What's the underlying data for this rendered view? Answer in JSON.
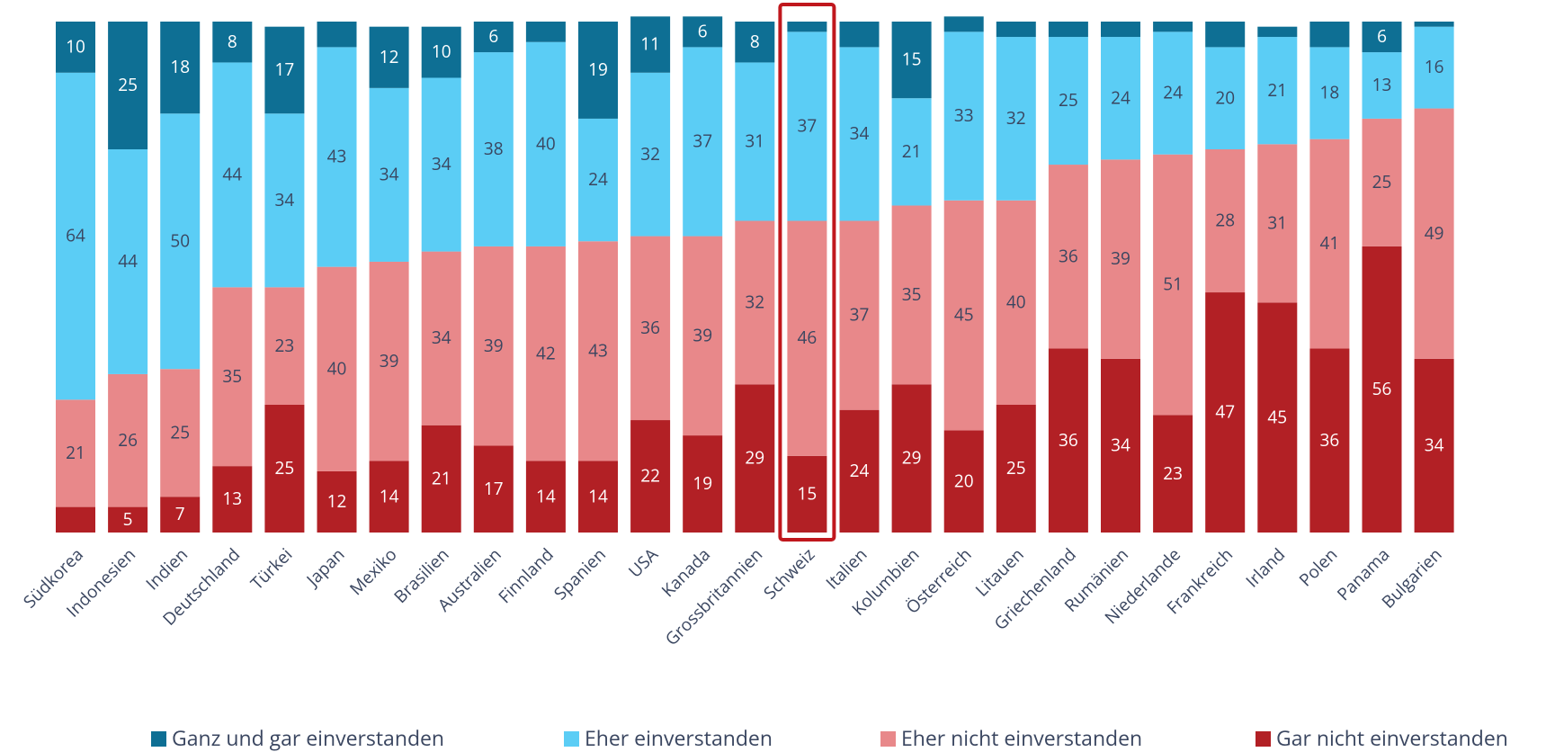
{
  "chart_data": {
    "type": "stacked_bar",
    "categories": [
      "Südkorea",
      "Indonesien",
      "Indien",
      "Deutschland",
      "Türkei",
      "Japan",
      "Mexiko",
      "Brasilien",
      "Australien",
      "Finnland",
      "Spanien",
      "USA",
      "Kanada",
      "Grossbritannien",
      "Schweiz",
      "Italien",
      "Kolumbien",
      "Österreich",
      "Litauen",
      "Griechenland",
      "Rumänien",
      "Niederlande",
      "Frankreich",
      "Irland",
      "Polen",
      "Panama",
      "Bulgarien"
    ],
    "series": [
      {
        "name": "Ganz und gar einverstanden",
        "color": "#0e6f94",
        "values": [
          10,
          25,
          18,
          8,
          17,
          5,
          12,
          10,
          6,
          4,
          19,
          11,
          6,
          8,
          2,
          5,
          15,
          3,
          3,
          3,
          3,
          2,
          5,
          2,
          5,
          6,
          1
        ],
        "value_labels": [
          "10",
          "25",
          "18",
          "8",
          "17",
          null,
          "12",
          "10",
          "6",
          null,
          "19",
          "11",
          "6",
          "8",
          null,
          null,
          "15",
          null,
          null,
          null,
          null,
          null,
          null,
          null,
          null,
          "6",
          null
        ]
      },
      {
        "name": "Eher einverstanden",
        "color": "#5bcdf5",
        "values": [
          64,
          44,
          50,
          44,
          34,
          43,
          34,
          34,
          38,
          40,
          24,
          32,
          37,
          31,
          37,
          34,
          21,
          33,
          32,
          25,
          24,
          24,
          20,
          21,
          18,
          13,
          16
        ],
        "value_labels": [
          "64",
          "44",
          "50",
          "44",
          "34",
          "43",
          "34",
          "34",
          "38",
          "40",
          "24",
          "32",
          "37",
          "31",
          "37",
          "34",
          "21",
          "33",
          "32",
          "25",
          "24",
          "24",
          "20",
          "21",
          "18",
          "13",
          "16"
        ]
      },
      {
        "name": "Eher nicht einverstanden",
        "color": "#e8888a",
        "values": [
          21,
          26,
          25,
          35,
          23,
          40,
          39,
          34,
          39,
          42,
          43,
          36,
          39,
          32,
          46,
          37,
          35,
          45,
          40,
          36,
          39,
          51,
          28,
          31,
          41,
          25,
          49
        ],
        "value_labels": [
          "21",
          "26",
          "25",
          "35",
          "23",
          "40",
          "39",
          "34",
          "39",
          "42",
          "43",
          "36",
          "39",
          "32",
          "46",
          "37",
          "35",
          "45",
          "40",
          "36",
          "39",
          "51",
          "28",
          "31",
          "41",
          "25",
          "49"
        ]
      },
      {
        "name": "Gar nicht einverstanden",
        "color": "#b22025",
        "values": [
          5,
          5,
          7,
          13,
          25,
          12,
          14,
          21,
          17,
          14,
          14,
          22,
          19,
          29,
          15,
          24,
          29,
          20,
          25,
          36,
          34,
          23,
          47,
          45,
          36,
          56,
          34
        ],
        "value_labels": [
          null,
          "5",
          "7",
          "13",
          "25",
          "12",
          "14",
          "21",
          "17",
          "14",
          "14",
          "22",
          "19",
          "29",
          "15",
          "24",
          "29",
          "20",
          "25",
          "36",
          "34",
          "23",
          "47",
          "45",
          "36",
          "56",
          "34"
        ]
      }
    ],
    "ylim": [
      0,
      100
    ],
    "highlight": "Schweiz",
    "highlight_color": "#c0171d"
  }
}
